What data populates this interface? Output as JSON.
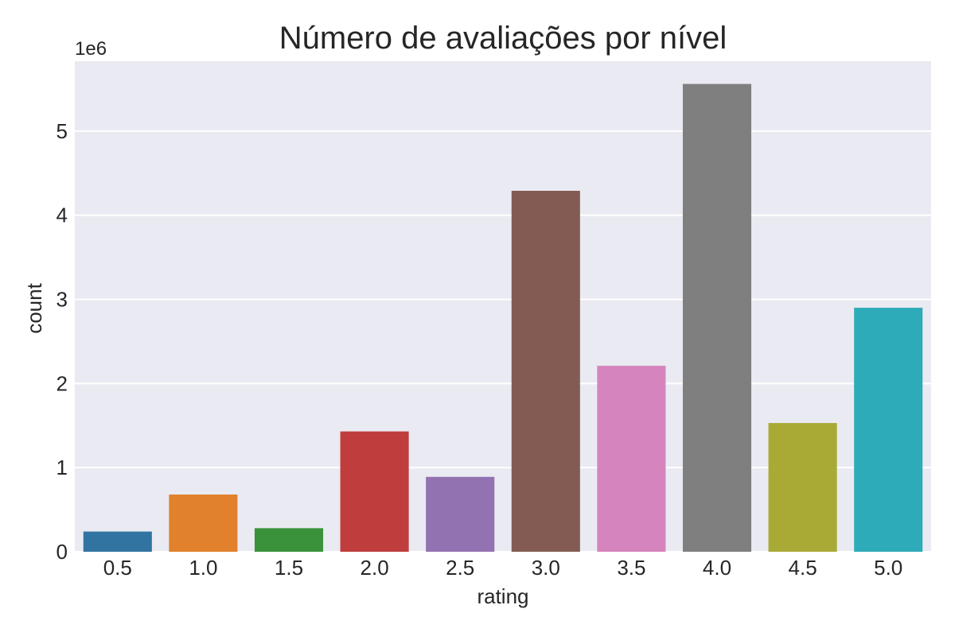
{
  "chart_data": {
    "type": "bar",
    "title": "Número de avaliações por nível",
    "xlabel": "rating",
    "ylabel": "count",
    "y_offset_label": "1e6",
    "y_tick_labels": [
      "0",
      "1",
      "2",
      "3",
      "4",
      "5"
    ],
    "y_ticks": [
      0,
      1,
      2,
      3,
      4,
      5
    ],
    "ylim": [
      0,
      5.83
    ],
    "categories": [
      "0.5",
      "1.0",
      "1.5",
      "2.0",
      "2.5",
      "3.0",
      "3.5",
      "4.0",
      "4.5",
      "5.0"
    ],
    "values": [
      0.24,
      0.68,
      0.28,
      1.43,
      0.89,
      4.29,
      2.21,
      5.56,
      1.53,
      2.9
    ],
    "colors": [
      "#3274a1",
      "#e1812c",
      "#3a923a",
      "#c03d3e",
      "#9372b2",
      "#845b53",
      "#d684bd",
      "#7f7f7f",
      "#a9aa35",
      "#2eabb8"
    ],
    "grid": true,
    "background_color": "#eaeaf2",
    "grid_color": "#ffffff"
  }
}
